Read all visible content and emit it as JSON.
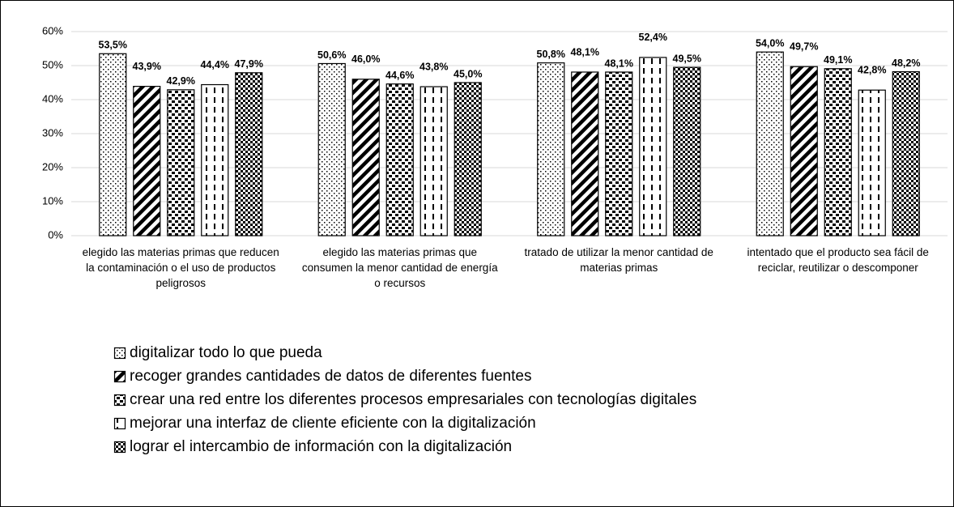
{
  "chart_data": {
    "type": "bar",
    "categories": [
      "elegido las materias primas que reducen la contaminación o el uso de productos peligrosos",
      "elegido las materias primas que consumen la menor cantidad de energía o recursos",
      "tratado de utilizar la menor cantidad de materias primas",
      "intentado que el producto sea fácil de reciclar, reutilizar o descomponer"
    ],
    "series": [
      {
        "name": "digitalizar todo lo que pueda",
        "color": "#000000",
        "pattern": "dots",
        "values": [
          53.5,
          50.6,
          50.8,
          54.0
        ],
        "value_labels": [
          "53,5%",
          "50,6%",
          "50,8%",
          "54,0%"
        ]
      },
      {
        "name": "recoger grandes cantidades de datos de diferentes fuentes",
        "color": "#000000",
        "pattern": "diagonal",
        "values": [
          43.9,
          46.0,
          48.1,
          49.7
        ],
        "value_labels": [
          "43,9%",
          "46,0%",
          "48,1%",
          "49,7%"
        ]
      },
      {
        "name": "crear una red entre los diferentes procesos empresariales con tecnologías digitales",
        "color": "#000000",
        "pattern": "bricks",
        "values": [
          42.9,
          44.6,
          48.1,
          49.1
        ],
        "value_labels": [
          "42,9%",
          "44,6%",
          "48,1%",
          "49,1%"
        ]
      },
      {
        "name": "mejorar una interfaz de cliente eficiente con la digitalización",
        "color": "#000000",
        "pattern": "dashes",
        "values": [
          44.4,
          43.8,
          52.4,
          42.8
        ],
        "value_labels": [
          "44,4%",
          "43,8%",
          "52,4%",
          "42,8%"
        ]
      },
      {
        "name": "lograr el intercambio de información con la digitalización",
        "color": "#000000",
        "pattern": "checker",
        "values": [
          47.9,
          45.0,
          49.5,
          48.2
        ],
        "value_labels": [
          "47,9%",
          "45,0%",
          "49,5%",
          "48,2%"
        ]
      }
    ],
    "ylim": [
      0,
      60
    ],
    "yticks": [
      {
        "value": 0,
        "label": "0%"
      },
      {
        "value": 10,
        "label": "10%"
      },
      {
        "value": 20,
        "label": "20%"
      },
      {
        "value": 30,
        "label": "30%"
      },
      {
        "value": 40,
        "label": "40%"
      },
      {
        "value": 50,
        "label": "50%"
      },
      {
        "value": 60,
        "label": "60%"
      }
    ],
    "grid": true,
    "legend": "bottom"
  }
}
